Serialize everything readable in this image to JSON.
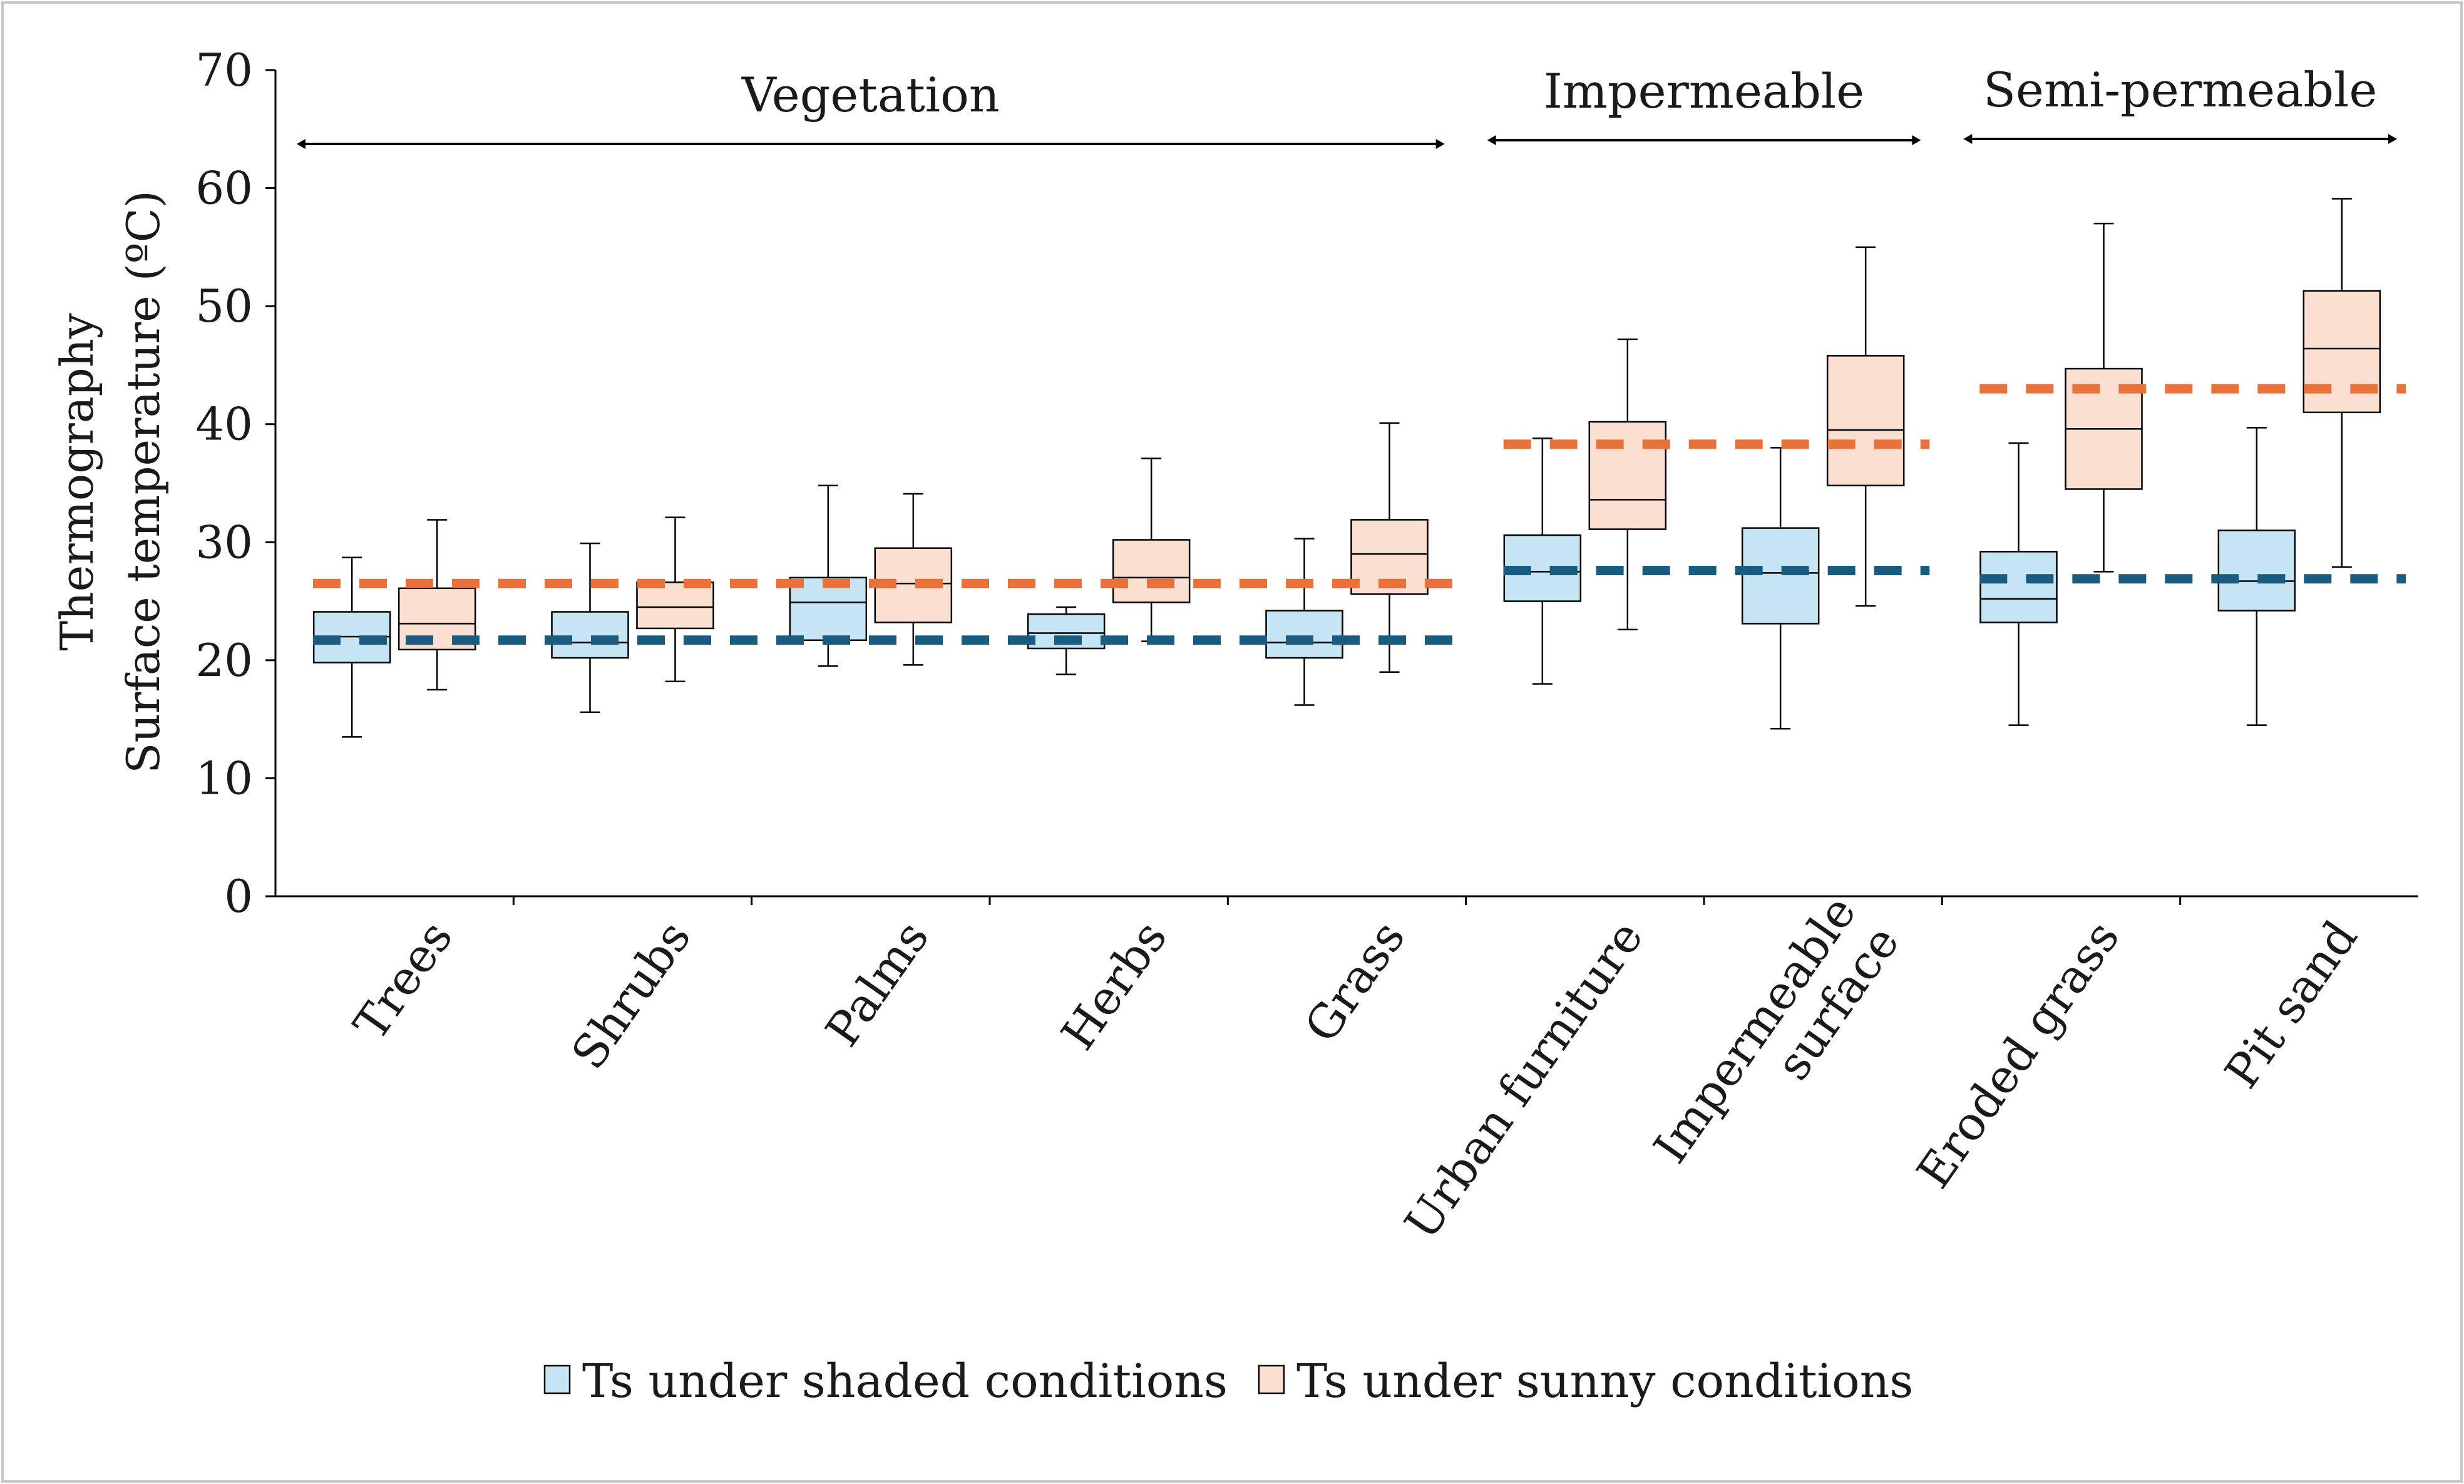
{
  "chart_data": {
    "type": "box",
    "title": "",
    "ylabel_line1": "Thermography",
    "ylabel_line2": "Surface temperature (ºC)",
    "ylim": [
      0,
      70
    ],
    "yticks": [
      0,
      10,
      20,
      30,
      40,
      50,
      60,
      70
    ],
    "categories": [
      {
        "name": "Trees",
        "lines": [
          "Trees"
        ]
      },
      {
        "name": "Shrubs",
        "lines": [
          "Shrubs"
        ]
      },
      {
        "name": "Palms",
        "lines": [
          "Palms"
        ]
      },
      {
        "name": "Herbs",
        "lines": [
          "Herbs"
        ]
      },
      {
        "name": "Grass",
        "lines": [
          "Grass"
        ]
      },
      {
        "name": "Urban furniture",
        "lines": [
          "Urban furniture"
        ]
      },
      {
        "name": "Impermeable surface",
        "lines": [
          "Impermeable",
          "surface"
        ]
      },
      {
        "name": "Eroded grass",
        "lines": [
          "Eroded grass"
        ]
      },
      {
        "name": "Pit sand",
        "lines": [
          "Pit sand"
        ]
      }
    ],
    "groups": [
      {
        "label": "Vegetation",
        "from": 0,
        "to": 4
      },
      {
        "label": "Impermeable",
        "from": 5,
        "to": 6
      },
      {
        "label": "Semi-permeable",
        "from": 7,
        "to": 8
      }
    ],
    "series": [
      {
        "name": "Ts under shaded conditions",
        "fill": "#c5e4f4",
        "boxes": [
          {
            "min": 13.5,
            "q1": 19.8,
            "median": 22.0,
            "q3": 24.1,
            "max": 28.7
          },
          {
            "min": 15.6,
            "q1": 20.2,
            "median": 21.5,
            "q3": 24.1,
            "max": 29.9
          },
          {
            "min": 19.5,
            "q1": 21.7,
            "median": 24.9,
            "q3": 27.0,
            "max": 34.8
          },
          {
            "min": 18.8,
            "q1": 21.0,
            "median": 22.3,
            "q3": 23.9,
            "max": 24.5
          },
          {
            "min": 16.2,
            "q1": 20.2,
            "median": 21.5,
            "q3": 24.2,
            "max": 30.3
          },
          {
            "min": 18.0,
            "q1": 25.0,
            "median": 27.5,
            "q3": 30.6,
            "max": 38.8
          },
          {
            "min": 14.2,
            "q1": 23.1,
            "median": 27.4,
            "q3": 31.2,
            "max": 38.0
          },
          {
            "min": 14.5,
            "q1": 23.2,
            "median": 25.2,
            "q3": 29.2,
            "max": 38.4
          },
          {
            "min": 14.5,
            "q1": 24.2,
            "median": 26.7,
            "q3": 31.0,
            "max": 39.7
          }
        ]
      },
      {
        "name": "Ts under sunny conditions",
        "fill": "#fbe0d1",
        "boxes": [
          {
            "min": 17.5,
            "q1": 20.9,
            "median": 23.1,
            "q3": 26.1,
            "max": 31.9
          },
          {
            "min": 18.2,
            "q1": 22.7,
            "median": 24.5,
            "q3": 26.6,
            "max": 32.1
          },
          {
            "min": 19.6,
            "q1": 23.2,
            "median": 26.5,
            "q3": 29.5,
            "max": 34.1
          },
          {
            "min": 21.6,
            "q1": 24.9,
            "median": 27.0,
            "q3": 30.2,
            "max": 37.1
          },
          {
            "min": 19.0,
            "q1": 25.6,
            "median": 29.0,
            "q3": 31.9,
            "max": 40.1
          },
          {
            "min": 22.6,
            "q1": 31.1,
            "median": 33.6,
            "q3": 40.2,
            "max": 47.2
          },
          {
            "min": 24.6,
            "q1": 34.8,
            "median": 39.5,
            "q3": 45.8,
            "max": 55.0
          },
          {
            "min": 27.5,
            "q1": 34.5,
            "median": 39.6,
            "q3": 44.7,
            "max": 57.0
          },
          {
            "min": 27.9,
            "q1": 41.0,
            "median": 46.4,
            "q3": 51.3,
            "max": 59.1
          }
        ]
      }
    ],
    "reference_lines": [
      {
        "series": "Ts under sunny conditions",
        "value": 26.5,
        "from": 0,
        "to": 4,
        "color": "#e8723a"
      },
      {
        "series": "Ts under sunny conditions",
        "value": 38.3,
        "from": 5,
        "to": 6,
        "color": "#e8723a"
      },
      {
        "series": "Ts under sunny conditions",
        "value": 43.0,
        "from": 7,
        "to": 8,
        "color": "#e8723a"
      },
      {
        "series": "Ts under shaded conditions",
        "value": 21.7,
        "from": 0,
        "to": 4,
        "color": "#1a5c80"
      },
      {
        "series": "Ts under shaded conditions",
        "value": 27.6,
        "from": 5,
        "to": 6,
        "color": "#1a5c80"
      },
      {
        "series": "Ts under shaded conditions",
        "value": 26.9,
        "from": 7,
        "to": 8,
        "color": "#1a5c80"
      }
    ],
    "legend_position": "bottom-center"
  }
}
